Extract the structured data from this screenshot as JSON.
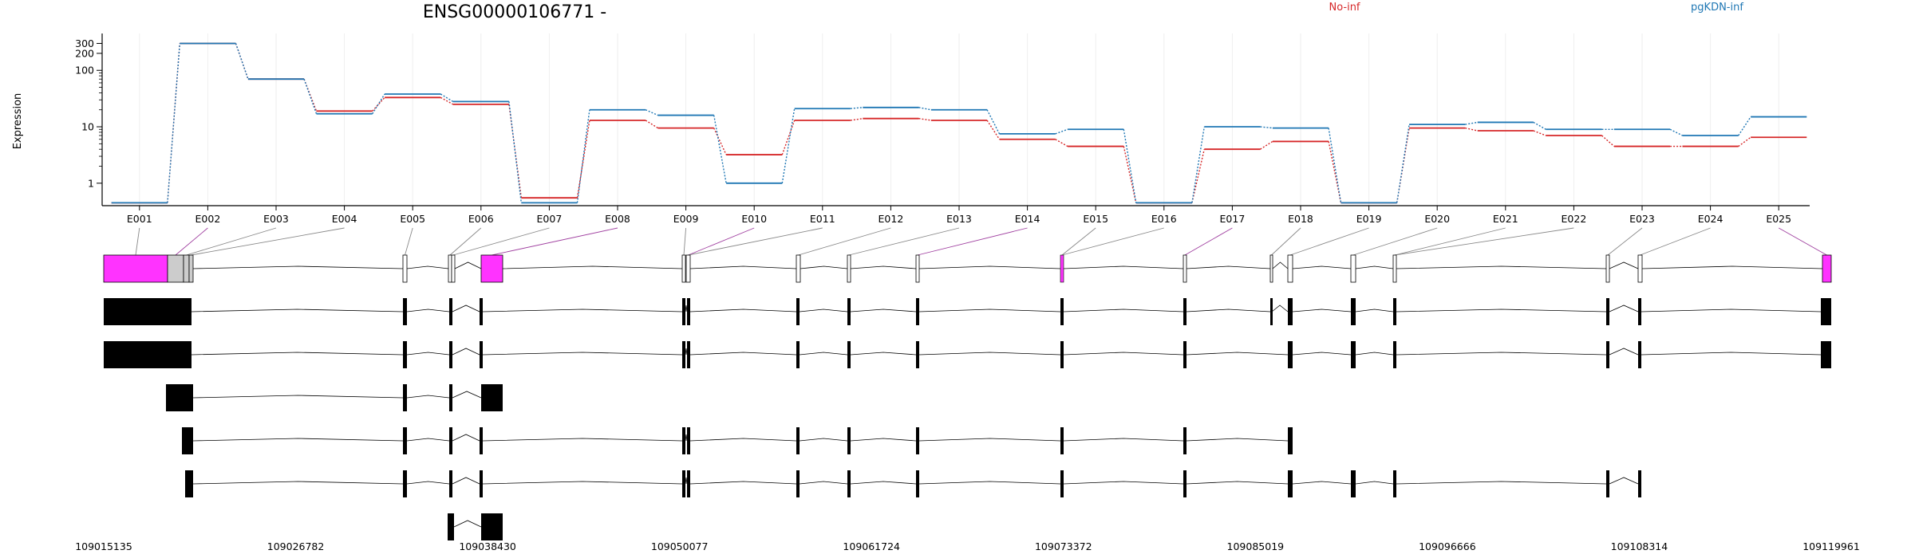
{
  "chart_data": {
    "type": "line",
    "title": "ENSG00000106771 -",
    "ylabel": "Expression",
    "yscale": "log",
    "ylim": [
      0.4,
      450
    ],
    "yticks": [
      1,
      10,
      100,
      200,
      300
    ],
    "grid": "vertical only",
    "legend_placement": "top-right",
    "categories": [
      "E001",
      "E002",
      "E003",
      "E004",
      "E005",
      "E006",
      "E007",
      "E008",
      "E009",
      "E010",
      "E011",
      "E012",
      "E013",
      "E014",
      "E015",
      "E016",
      "E017",
      "E018",
      "E019",
      "E020",
      "E021",
      "E022",
      "E023",
      "E024",
      "E025"
    ],
    "series": [
      {
        "name": "No-inf",
        "color": "#d62728",
        "values": [
          0.45,
          300,
          70,
          19,
          33,
          25,
          0.55,
          13,
          9.5,
          3.2,
          13,
          14,
          13,
          6,
          4.5,
          0.45,
          4,
          5.5,
          0.45,
          9.5,
          8.5,
          7,
          4.5,
          4.5,
          6.5
        ]
      },
      {
        "name": "pgKDN-inf",
        "color": "#1f77b4",
        "values": [
          0.45,
          300,
          70,
          17,
          38,
          28,
          0.45,
          20,
          16,
          1,
          21,
          22,
          20,
          7.5,
          9,
          0.45,
          10,
          9.5,
          0.45,
          11,
          12,
          9,
          9,
          7,
          15
        ]
      }
    ]
  },
  "gene_model": {
    "genomic_ticks": [
      "109015135",
      "109026782",
      "109038430",
      "109050077",
      "109061724",
      "109073372",
      "109085019",
      "109096666",
      "109108314",
      "109119961"
    ],
    "genomic_range": [
      109015135,
      109119961
    ],
    "colors": {
      "exon_highlight": "#ff33ff",
      "exon_plain": "#ffffff",
      "exon_dim": "#cccccc",
      "transcript_fill": "#000000",
      "link_plain": "#888888",
      "link_highlight": "#a040a0"
    }
  }
}
